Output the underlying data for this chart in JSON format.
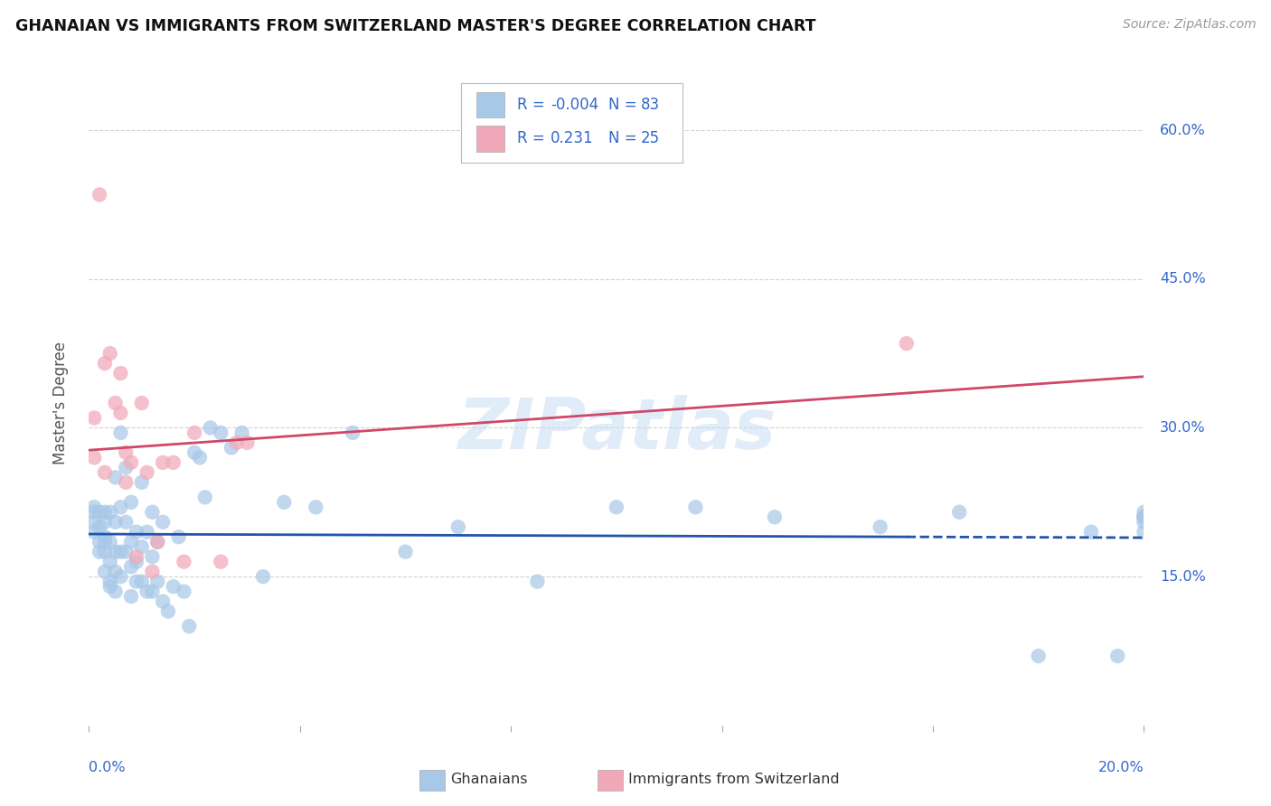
{
  "title": "GHANAIAN VS IMMIGRANTS FROM SWITZERLAND MASTER'S DEGREE CORRELATION CHART",
  "source": "Source: ZipAtlas.com",
  "ylabel": "Master's Degree",
  "legend_blue_label": "Ghanaians",
  "legend_pink_label": "Immigrants from Switzerland",
  "blue_color": "#a8c8e8",
  "pink_color": "#f0a8b8",
  "blue_line_color": "#2255aa",
  "pink_line_color": "#d04868",
  "text_color_blue": "#3366cc",
  "text_color_dark": "#333344",
  "watermark": "ZIPatlas",
  "xlim": [
    0.0,
    0.2
  ],
  "ylim": [
    0.0,
    0.65
  ],
  "blue_r_text": "-0.004",
  "blue_n_text": "83",
  "pink_r_text": "0.231",
  "pink_n_text": "25",
  "ghanaians_x": [
    0.001,
    0.001,
    0.001,
    0.001,
    0.002,
    0.002,
    0.002,
    0.002,
    0.003,
    0.003,
    0.003,
    0.003,
    0.003,
    0.003,
    0.004,
    0.004,
    0.004,
    0.004,
    0.004,
    0.005,
    0.005,
    0.005,
    0.005,
    0.005,
    0.006,
    0.006,
    0.006,
    0.006,
    0.007,
    0.007,
    0.007,
    0.008,
    0.008,
    0.008,
    0.008,
    0.009,
    0.009,
    0.009,
    0.01,
    0.01,
    0.01,
    0.011,
    0.011,
    0.012,
    0.012,
    0.012,
    0.013,
    0.013,
    0.014,
    0.014,
    0.015,
    0.016,
    0.017,
    0.018,
    0.019,
    0.02,
    0.021,
    0.022,
    0.023,
    0.025,
    0.027,
    0.029,
    0.033,
    0.037,
    0.043,
    0.05,
    0.06,
    0.07,
    0.085,
    0.1,
    0.115,
    0.13,
    0.15,
    0.165,
    0.18,
    0.19,
    0.195,
    0.2,
    0.2,
    0.2,
    0.2,
    0.2,
    0.2
  ],
  "ghanaians_y": [
    0.205,
    0.215,
    0.22,
    0.195,
    0.185,
    0.2,
    0.215,
    0.175,
    0.155,
    0.175,
    0.19,
    0.205,
    0.185,
    0.215,
    0.145,
    0.165,
    0.185,
    0.215,
    0.14,
    0.135,
    0.155,
    0.175,
    0.205,
    0.25,
    0.15,
    0.175,
    0.22,
    0.295,
    0.175,
    0.205,
    0.26,
    0.13,
    0.16,
    0.185,
    0.225,
    0.145,
    0.165,
    0.195,
    0.145,
    0.18,
    0.245,
    0.135,
    0.195,
    0.135,
    0.17,
    0.215,
    0.145,
    0.185,
    0.125,
    0.205,
    0.115,
    0.14,
    0.19,
    0.135,
    0.1,
    0.275,
    0.27,
    0.23,
    0.3,
    0.295,
    0.28,
    0.295,
    0.15,
    0.225,
    0.22,
    0.295,
    0.175,
    0.2,
    0.145,
    0.22,
    0.22,
    0.21,
    0.2,
    0.215,
    0.07,
    0.195,
    0.07,
    0.21,
    0.195,
    0.21,
    0.215,
    0.21,
    0.205
  ],
  "swiss_x": [
    0.001,
    0.001,
    0.002,
    0.003,
    0.003,
    0.004,
    0.005,
    0.006,
    0.006,
    0.007,
    0.007,
    0.008,
    0.009,
    0.01,
    0.011,
    0.012,
    0.013,
    0.014,
    0.016,
    0.018,
    0.02,
    0.025,
    0.028,
    0.03,
    0.155
  ],
  "swiss_y": [
    0.27,
    0.31,
    0.535,
    0.255,
    0.365,
    0.375,
    0.325,
    0.315,
    0.355,
    0.245,
    0.275,
    0.265,
    0.17,
    0.325,
    0.255,
    0.155,
    0.185,
    0.265,
    0.265,
    0.165,
    0.295,
    0.165,
    0.285,
    0.285,
    0.385
  ]
}
